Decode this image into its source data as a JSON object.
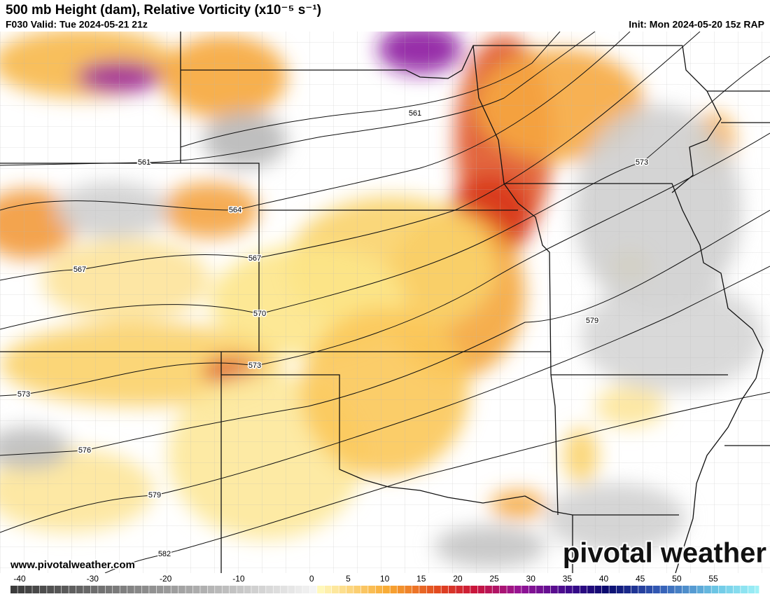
{
  "header": {
    "title": "500 mb Height (dam), Relative Vorticity (x10⁻⁵ s⁻¹)",
    "valid": "F030 Valid: Tue 2024-05-21 21z",
    "init": "Init: Mon 2024-05-20 15z RAP"
  },
  "contour_labels": [
    561,
    561,
    564,
    567,
    567,
    570,
    573,
    573,
    576,
    579,
    579,
    573,
    582
  ],
  "watermark": "www.pivotalweather.com",
  "logo": "pivotal weather",
  "colorbar": {
    "ticks": [
      -40,
      -30,
      -20,
      -10,
      0,
      5,
      10,
      15,
      20,
      25,
      30,
      35,
      40,
      45,
      50,
      55
    ]
  }
}
